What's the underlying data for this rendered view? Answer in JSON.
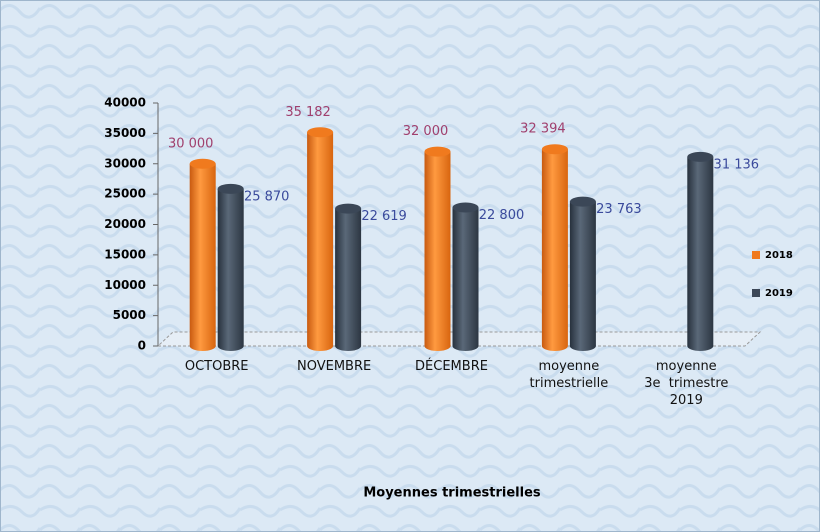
{
  "chart_data": {
    "type": "bar3d",
    "x_label": "Moyennes trimestrielles",
    "categories": [
      "OCTOBRE",
      "NOVEMBRE",
      "DÉCEMBRE",
      "moyenne\ntrimestrielle",
      "moyenne\n3e  trimestre\n2019"
    ],
    "series": [
      {
        "name": "2018",
        "color": "#f07a1e",
        "label_color": "#a0406e",
        "values": [
          30000,
          35182,
          32000,
          32394,
          null
        ],
        "value_labels": [
          "30 000",
          "35 182",
          "32 000",
          "32 394",
          null
        ]
      },
      {
        "name": "2019",
        "color": "#3b4757",
        "label_color": "#3a4a9c",
        "values": [
          25870,
          22619,
          22800,
          23763,
          31136
        ],
        "value_labels": [
          "25 870",
          "22 619",
          "22 800",
          "23 763",
          "31 136"
        ]
      }
    ],
    "ylim": [
      0,
      40000
    ],
    "yticks": [
      0,
      5000,
      10000,
      15000,
      20000,
      25000,
      30000,
      35000,
      40000
    ],
    "legend": "right"
  }
}
